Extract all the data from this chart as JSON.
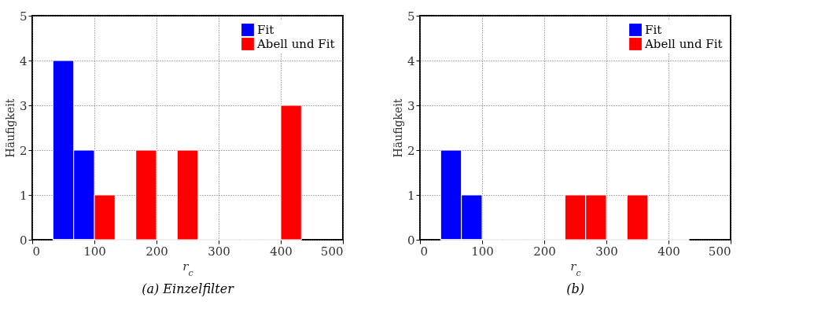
{
  "chart_data": [
    {
      "type": "histogram",
      "title": "(a) Einzelfilter",
      "xlabel": "r$_{c}$",
      "ylabel": "Häufigkeit",
      "bins": [
        33.3,
        66.7,
        100,
        133.3,
        166.7,
        200,
        233.3,
        266.7,
        300,
        333.3,
        366.7,
        400,
        433.3
      ],
      "xlim": [
        0,
        500
      ],
      "xticks": [
        0,
        100,
        200,
        300,
        400,
        500
      ],
      "ylim": [
        0,
        5
      ],
      "yticks": [
        0,
        1,
        2,
        3,
        4,
        5
      ],
      "grid": true,
      "legend": "top right",
      "series": [
        {
          "name": "Fit",
          "color": "#0000ff",
          "values": [
            4,
            2,
            0,
            0,
            0,
            0,
            0,
            0,
            0,
            0,
            0,
            0
          ]
        },
        {
          "name": "Abell und Fit",
          "color": "#ff0000",
          "values": [
            0,
            0,
            1,
            0,
            2,
            0,
            2,
            0,
            0,
            0,
            0,
            3
          ]
        }
      ]
    },
    {
      "type": "histogram",
      "title": "(b)",
      "xlabel": "r$_{c}$",
      "ylabel": "Häufigkeit",
      "bins": [
        33.3,
        66.7,
        100,
        133.3,
        166.7,
        200,
        233.3,
        266.7,
        300,
        333.3,
        366.7,
        400,
        433.3
      ],
      "xlim": [
        0,
        500
      ],
      "xticks": [
        0,
        100,
        200,
        300,
        400,
        500
      ],
      "ylim": [
        0,
        5
      ],
      "yticks": [
        0,
        1,
        2,
        3,
        4,
        5
      ],
      "grid": true,
      "legend": "top right",
      "series": [
        {
          "name": "Fit",
          "color": "#0000ff",
          "values": [
            2,
            1,
            0,
            0,
            0,
            0,
            0,
            0,
            0,
            0,
            0,
            0
          ]
        },
        {
          "name": "Abell und Fit",
          "color": "#ff0000",
          "values": [
            0,
            0,
            0,
            0,
            0,
            0,
            1,
            1,
            0,
            1,
            0,
            0
          ]
        }
      ]
    }
  ]
}
